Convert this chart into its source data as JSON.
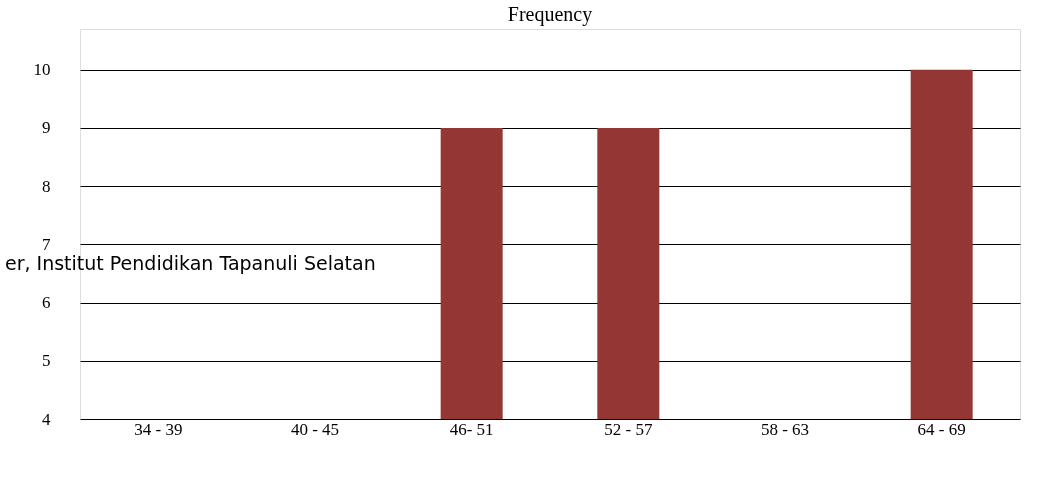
{
  "chart_data": {
    "type": "bar",
    "title": "Frequency",
    "categories": [
      "34 - 39",
      "40 - 45",
      "46- 51",
      "52 - 57",
      "58 - 63",
      "64 - 69"
    ],
    "series": [
      {
        "color": "#943634",
        "values": [
          null,
          null,
          9,
          9,
          null,
          10
        ]
      }
    ],
    "ylim": [
      4,
      10.7
    ],
    "yticks": [
      4,
      5,
      6,
      7,
      8,
      9,
      10
    ],
    "grid": "y",
    "annotations": [
      "er, Institut Pendidikan Tapanuli Selatan"
    ]
  }
}
